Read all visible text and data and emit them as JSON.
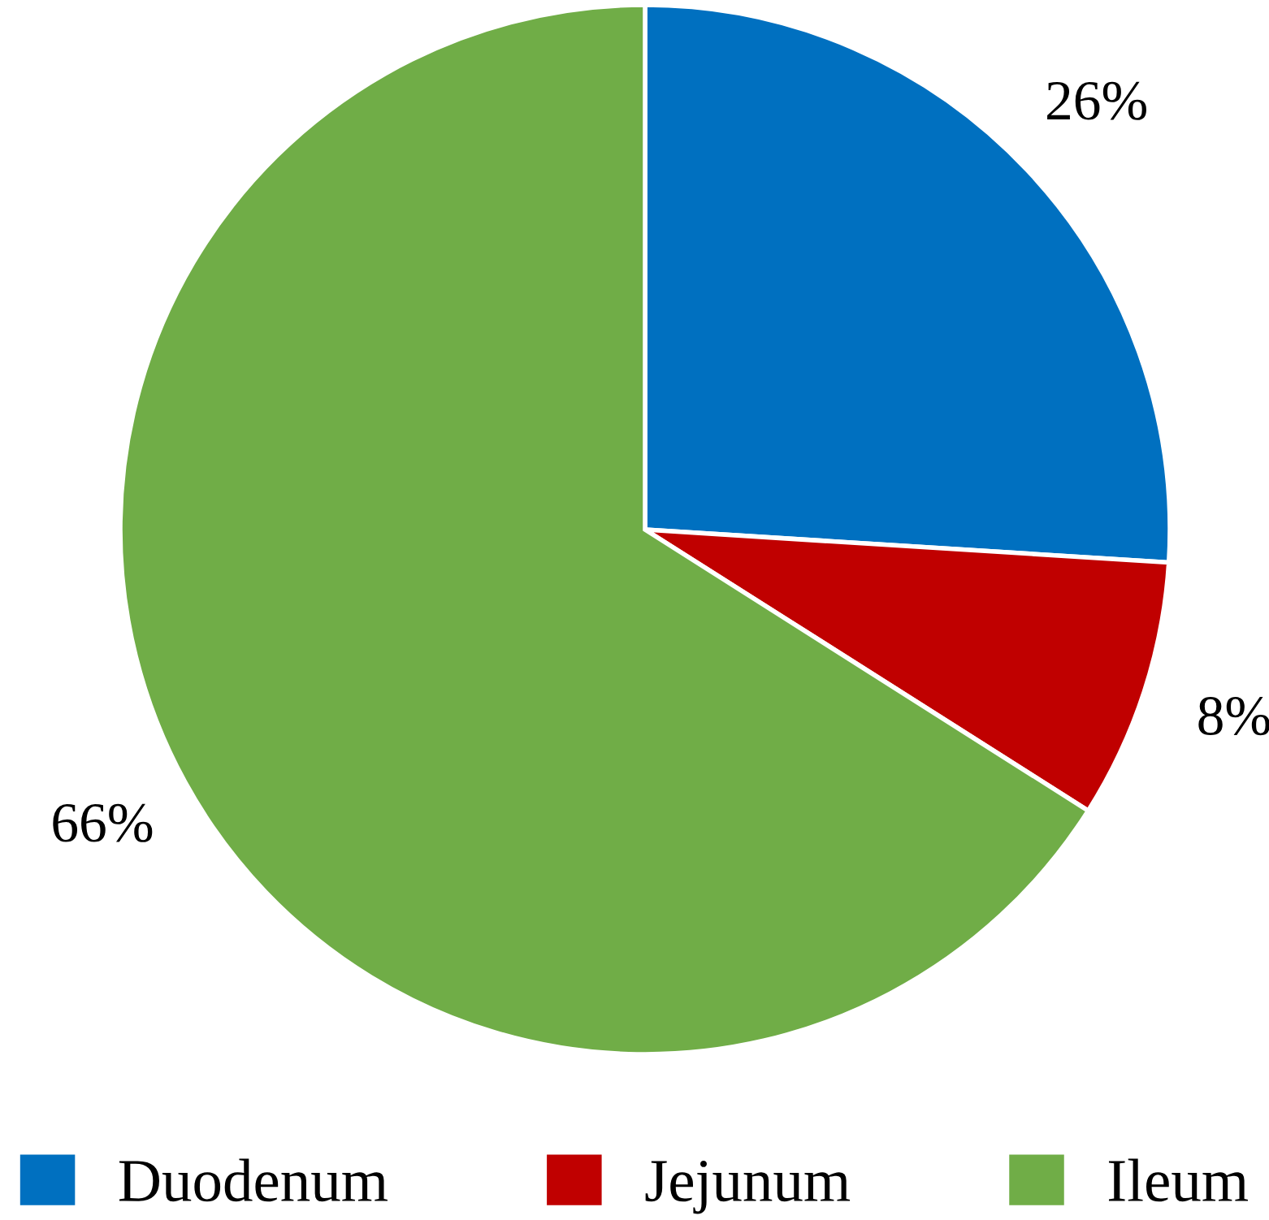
{
  "chart_data": {
    "type": "pie",
    "categories": [
      "Duodenum",
      "Jejunum",
      "Ileum"
    ],
    "values": [
      26,
      8,
      66
    ],
    "colors": [
      "#0070c0",
      "#c00000",
      "#70ad47"
    ],
    "value_labels": [
      "26%",
      "8%",
      "66%"
    ],
    "legend": "bottom"
  }
}
